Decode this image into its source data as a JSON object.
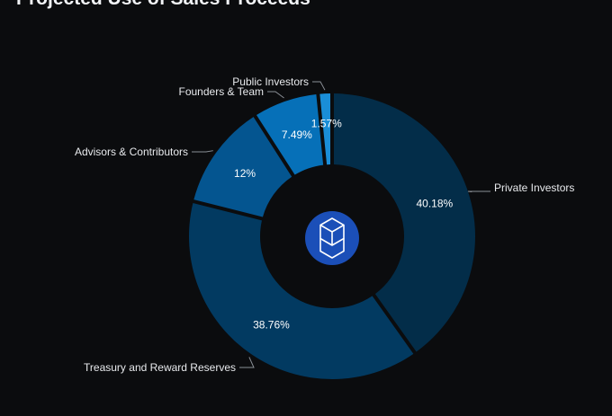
{
  "title": "Projected Use of Sales Proceeds",
  "center_icon": "fantom-cube-logo",
  "colors": {
    "background": "#0b0c0e",
    "logo_circle": "#1b4fb8"
  },
  "chart_data": {
    "type": "pie",
    "donut": true,
    "title": "Projected Use of Sales Proceeds",
    "slices": [
      {
        "label": "Private Investors",
        "value": 40.18,
        "value_label": "40.18%",
        "color": "#032d49"
      },
      {
        "label": "Treasury and Reward Reserves",
        "value": 38.76,
        "value_label": "38.76%",
        "color": "#023a61"
      },
      {
        "label": "Advisors & Contributors",
        "value": 12,
        "value_label": "12%",
        "color": "#045590"
      },
      {
        "label": "Founders & Team",
        "value": 7.49,
        "value_label": "7.49%",
        "color": "#0670b8"
      },
      {
        "label": "Public Investors",
        "value": 1.57,
        "value_label": "1.57%",
        "color": "#1a8ed8"
      }
    ]
  }
}
